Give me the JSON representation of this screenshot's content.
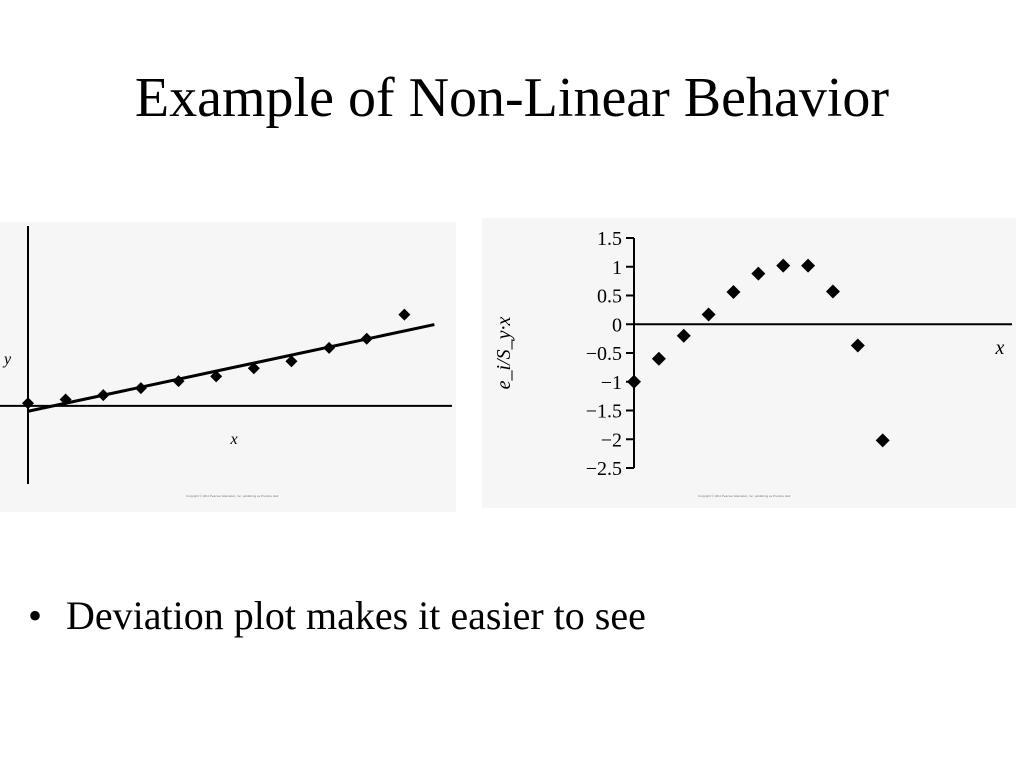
{
  "slide": {
    "title": "Example of Non-Linear Behavior",
    "bullets": [
      "Deviation plot makes it easier to see"
    ]
  },
  "copyright": [
    "Copyright © 2011 Pearson Education, Inc. publishing as Prentice Hall",
    "Copyright © 2011 Pearson Education, Inc. publishing as Prentice Hall"
  ],
  "colors": {
    "marker": "#000000",
    "axis": "#000000",
    "panel_bg": "#f6f6f6"
  },
  "chart_data": [
    {
      "type": "scatter",
      "title": "",
      "xlabel": "x",
      "ylabel": "y",
      "ticks_shown": false,
      "xlim": [
        0,
        11
      ],
      "ylim": [
        -0.3,
        3.2
      ],
      "series": [
        {
          "x": [
            0,
            1,
            2,
            3,
            4,
            5,
            6,
            7,
            8,
            9,
            10
          ],
          "y": [
            0.05,
            0.12,
            0.2,
            0.33,
            0.46,
            0.55,
            0.7,
            0.83,
            1.08,
            1.25,
            1.7
          ]
        }
      ],
      "fit_line": {
        "x": [
          0,
          10
        ],
        "y": [
          -0.1,
          1.38
        ]
      }
    },
    {
      "type": "scatter",
      "title": "",
      "xlabel": "x",
      "ylabel": "e_i/S_y·x",
      "xlim": [
        0,
        15.2
      ],
      "ylim": [
        -2.5,
        1.5
      ],
      "yticks": [
        "1.5",
        "1",
        "0.5",
        "0",
        "−0.5",
        "−1",
        "−1.5",
        "−2",
        "−2.5"
      ],
      "series": [
        {
          "x": [
            0,
            1,
            2,
            3,
            4,
            5,
            6,
            7,
            8,
            9,
            10
          ],
          "y": [
            -1.0,
            -0.6,
            -0.2,
            0.17,
            0.56,
            0.88,
            1.02,
            1.02,
            0.57,
            -0.37,
            -2.02
          ]
        }
      ]
    }
  ]
}
